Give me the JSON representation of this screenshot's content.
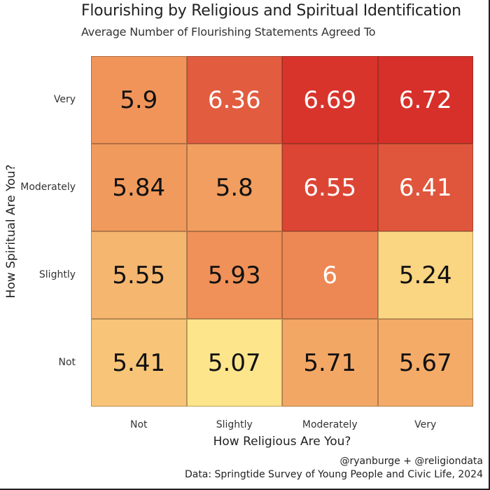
{
  "header": {
    "title": "Flourishing by Religious and Spiritual Identification",
    "subtitle": "Average Number of Flourishing Statements Agreed To"
  },
  "footer": {
    "credit": "@ryanburge + @religiondata",
    "source": "Data: Springtide Survey of Young People and Civic Life, 2024"
  },
  "chart_data": {
    "type": "heatmap",
    "title": "Flourishing by Religious and Spiritual Identification",
    "subtitle": "Average Number of Flourishing Statements Agreed To",
    "xlabel": "How Religious Are You?",
    "ylabel": "How Spiritual Are You?",
    "x_categories": [
      "Not",
      "Slightly",
      "Moderately",
      "Very"
    ],
    "y_categories": [
      "Very",
      "Moderately",
      "Slightly",
      "Not"
    ],
    "values": [
      [
        5.9,
        6.36,
        6.69,
        6.72
      ],
      [
        5.84,
        5.8,
        6.55,
        6.41
      ],
      [
        5.55,
        5.93,
        6,
        5.24
      ],
      [
        5.41,
        5.07,
        5.71,
        5.67
      ]
    ],
    "value_labels": [
      [
        "5.9",
        "6.36",
        "6.69",
        "6.72"
      ],
      [
        "5.84",
        "5.8",
        "6.55",
        "6.41"
      ],
      [
        "5.55",
        "5.93",
        "6",
        "5.24"
      ],
      [
        "5.41",
        "5.07",
        "5.71",
        "5.67"
      ]
    ],
    "color_low": "#fde58c",
    "color_mid": "#f0955a",
    "color_high": "#d7302a",
    "legend": "none",
    "grid": false
  }
}
